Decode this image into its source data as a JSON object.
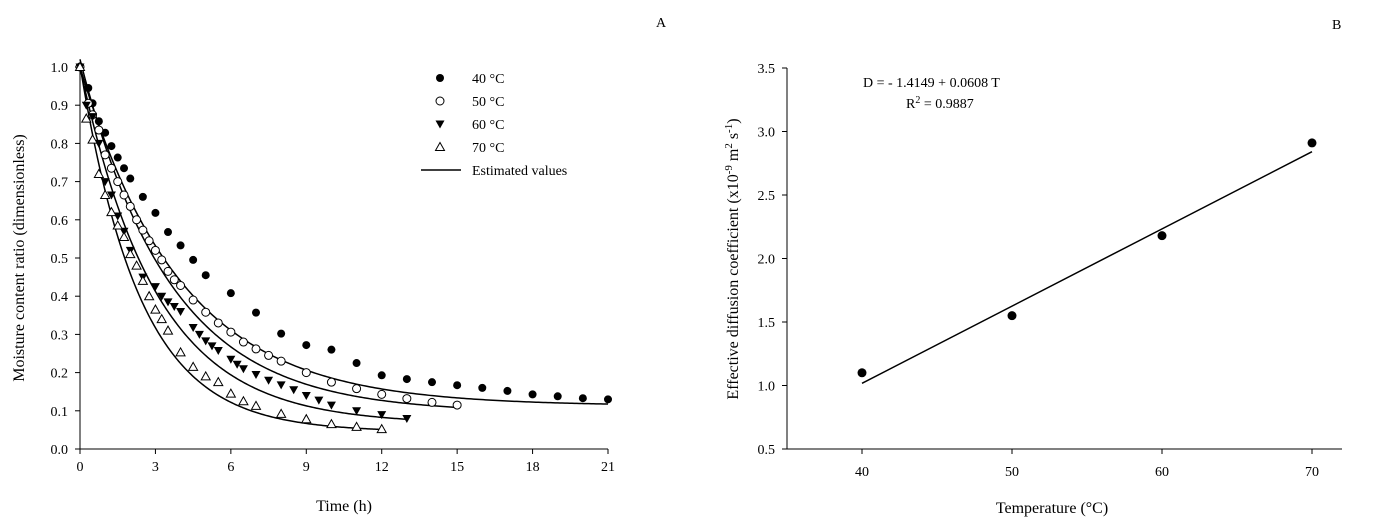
{
  "panels": {
    "a_label": "A",
    "b_label": "B"
  },
  "chart_data": [
    {
      "type": "scatter",
      "panel": "A",
      "xlabel": "Time (h)",
      "ylabel": "Moisture content ratio (dimensionless)",
      "xlim": [
        0,
        21
      ],
      "ylim": [
        0.0,
        1.0
      ],
      "xticks": [
        0,
        3,
        6,
        9,
        12,
        15,
        18,
        21
      ],
      "yticks": [
        0.0,
        0.1,
        0.2,
        0.3,
        0.4,
        0.5,
        0.6,
        0.7,
        0.8,
        0.9,
        1.0
      ],
      "ytick_labels": [
        "0.0",
        "0.1",
        "0.2",
        "0.3",
        "0.4",
        "0.5",
        "0.6",
        "0.7",
        "0.8",
        "0.9",
        "1.0"
      ],
      "grid": false,
      "legend_position": "top-right",
      "legend_line_label": "Estimated values",
      "series": [
        {
          "name": "40 °C",
          "marker": "filled-circle",
          "x": [
            0,
            0.33,
            0.5,
            0.75,
            1,
            1.25,
            1.5,
            1.75,
            2,
            2.5,
            3,
            3.5,
            4,
            4.5,
            5,
            6,
            7,
            8,
            9,
            10,
            11,
            12,
            13,
            14,
            15,
            16,
            17,
            18,
            19,
            20,
            21
          ],
          "y": [
            1.0,
            0.945,
            0.905,
            0.858,
            0.828,
            0.793,
            0.763,
            0.735,
            0.708,
            0.66,
            0.618,
            0.568,
            0.533,
            0.495,
            0.455,
            0.408,
            0.357,
            0.302,
            0.272,
            0.26,
            0.225,
            0.193,
            0.183,
            0.175,
            0.167,
            0.16,
            0.152,
            0.143,
            0.138,
            0.133,
            0.13
          ],
          "fit": {
            "model": "exponential",
            "a": 0.887,
            "k": 0.25,
            "c": 0.113,
            "x_end": 21
          }
        },
        {
          "name": "50 °C",
          "marker": "open-circle",
          "x": [
            0,
            0.33,
            0.5,
            0.75,
            1,
            1.25,
            1.5,
            1.75,
            2,
            2.25,
            2.5,
            2.75,
            3,
            3.25,
            3.5,
            3.75,
            4,
            4.5,
            5,
            5.5,
            6,
            6.5,
            7,
            7.5,
            8,
            9,
            10,
            11,
            12,
            13,
            14,
            15
          ],
          "y": [
            1.0,
            0.905,
            0.875,
            0.835,
            0.77,
            0.735,
            0.7,
            0.665,
            0.635,
            0.6,
            0.573,
            0.545,
            0.52,
            0.495,
            0.465,
            0.443,
            0.428,
            0.39,
            0.358,
            0.33,
            0.306,
            0.28,
            0.262,
            0.245,
            0.23,
            0.2,
            0.175,
            0.158,
            0.143,
            0.132,
            0.122,
            0.115
          ],
          "fit": {
            "model": "exponential",
            "a": 0.925,
            "k": 0.28,
            "c": 0.095,
            "x_end": 15
          }
        },
        {
          "name": "60 °C",
          "marker": "filled-triangle-down",
          "x": [
            0,
            0.25,
            0.5,
            0.75,
            1,
            1.25,
            1.5,
            1.75,
            2,
            2.5,
            3,
            3.25,
            3.5,
            3.75,
            4,
            4.5,
            4.75,
            5,
            5.25,
            5.5,
            6,
            6.25,
            6.5,
            7,
            7.5,
            8,
            8.5,
            9,
            9.5,
            10,
            11,
            12,
            13
          ],
          "y": [
            1.0,
            0.9,
            0.87,
            0.8,
            0.7,
            0.665,
            0.61,
            0.57,
            0.52,
            0.45,
            0.425,
            0.4,
            0.385,
            0.373,
            0.36,
            0.318,
            0.3,
            0.283,
            0.27,
            0.258,
            0.235,
            0.222,
            0.21,
            0.195,
            0.18,
            0.168,
            0.155,
            0.14,
            0.128,
            0.115,
            0.1,
            0.09,
            0.08
          ],
          "fit": {
            "model": "exponential",
            "a": 0.935,
            "k": 0.33,
            "c": 0.065,
            "x_end": 13
          }
        },
        {
          "name": "70 °C",
          "marker": "open-triangle-up",
          "x": [
            0,
            0.25,
            0.5,
            0.75,
            1,
            1.25,
            1.5,
            1.75,
            2,
            2.25,
            2.5,
            2.75,
            3,
            3.25,
            3.5,
            4,
            4.5,
            5,
            5.5,
            6,
            6.5,
            7,
            8,
            9,
            10,
            11,
            12
          ],
          "y": [
            1.0,
            0.865,
            0.81,
            0.72,
            0.665,
            0.62,
            0.585,
            0.555,
            0.51,
            0.48,
            0.44,
            0.4,
            0.365,
            0.34,
            0.31,
            0.253,
            0.215,
            0.19,
            0.175,
            0.145,
            0.125,
            0.113,
            0.092,
            0.078,
            0.065,
            0.058,
            0.052
          ],
          "fit": {
            "model": "exponential",
            "a": 0.96,
            "k": 0.42,
            "c": 0.045,
            "x_end": 12
          }
        }
      ]
    },
    {
      "type": "scatter",
      "panel": "B",
      "xlabel": "Temperature (°C)",
      "ylabel_parts": {
        "main": "Effective diffusion coefficient  (x10",
        "exp1": "-9",
        "unit_m": " m",
        "exp2": "2",
        "unit_s": " s",
        "exp3": "-1",
        "close": ")"
      },
      "xlim": [
        35,
        72
      ],
      "ylim": [
        0.5,
        3.5
      ],
      "xticks": [
        40,
        50,
        60,
        70
      ],
      "yticks": [
        0.5,
        1.0,
        1.5,
        2.0,
        2.5,
        3.0,
        3.5
      ],
      "ytick_labels": [
        "0.5",
        "1.0",
        "1.5",
        "2.0",
        "2.5",
        "3.0",
        "3.5"
      ],
      "grid": false,
      "x": [
        40,
        50,
        60,
        70
      ],
      "y": [
        1.1,
        1.55,
        2.18,
        2.91
      ],
      "fit": {
        "intercept": -1.4149,
        "slope": 0.0608,
        "x_start": 40,
        "x_end": 70
      },
      "annotation_equation": "D = - 1.4149 + 0.0608 T",
      "annotation_r2_prefix": "R",
      "annotation_r2_exp": "2",
      "annotation_r2_value": " = 0.9887"
    }
  ]
}
